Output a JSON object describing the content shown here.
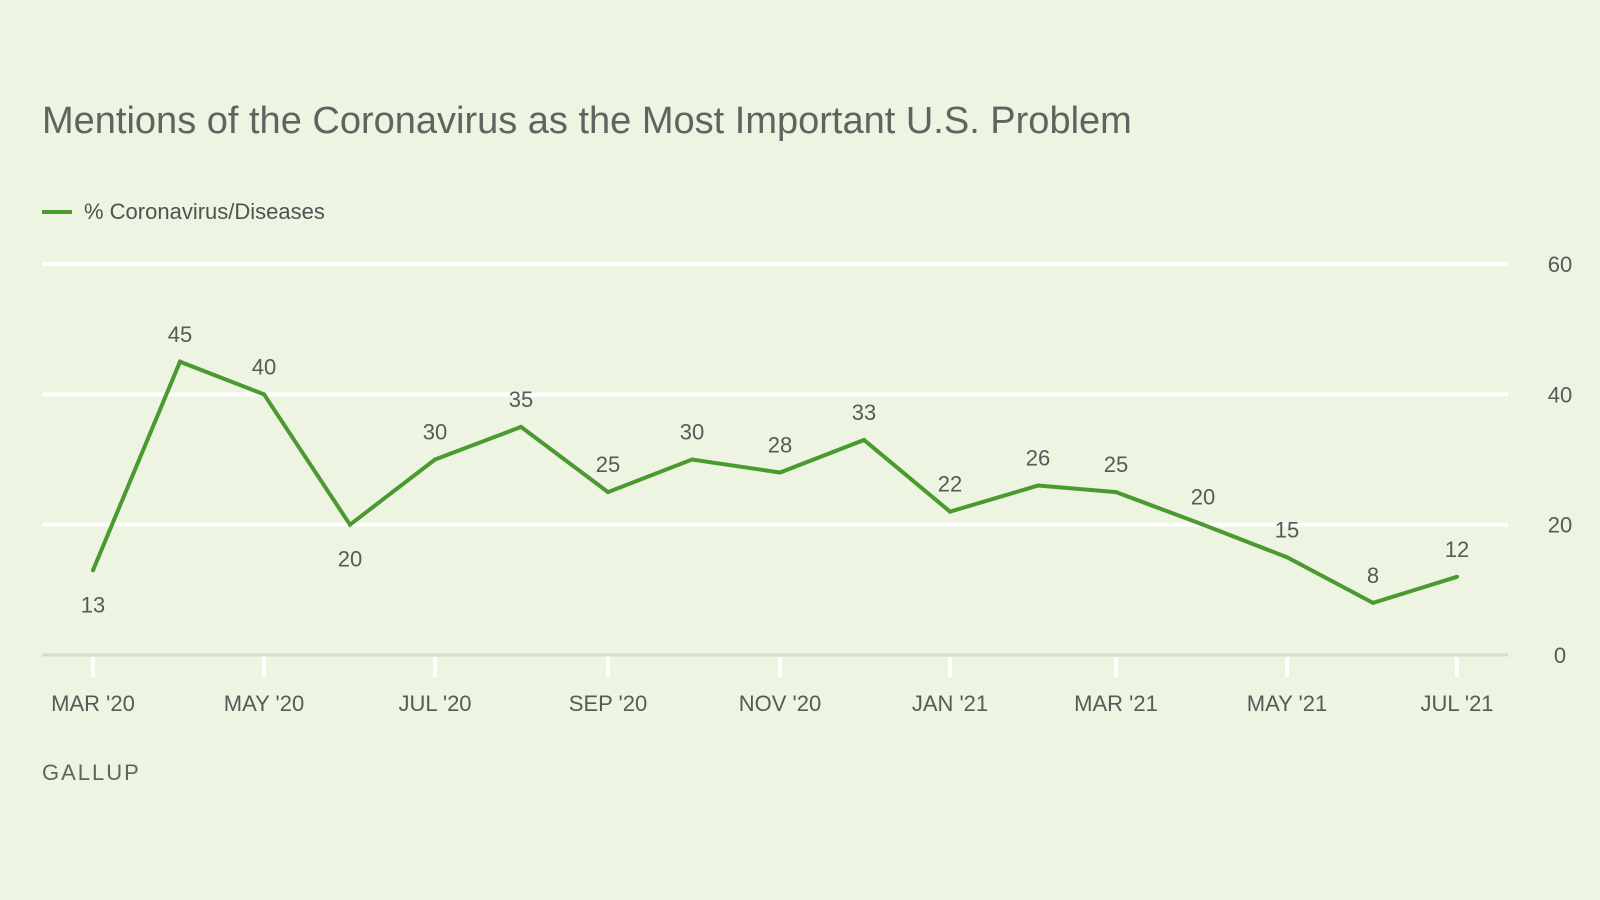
{
  "chart_data": {
    "type": "line",
    "title": "Mentions of the Coronavirus as the Most Important U.S. Problem",
    "legend": {
      "position": "top-left",
      "entries": [
        "% Coronavirus/Diseases"
      ]
    },
    "source": "GALLUP",
    "x": [
      "Mar '20",
      "Apr '20",
      "May '20",
      "Jun '20",
      "Jul '20",
      "Aug '20",
      "Sep '20",
      "Oct '20",
      "Nov '20",
      "Dec '20",
      "Jan '21",
      "Feb '21",
      "Mar '21",
      "Apr '21",
      "May '21",
      "Jun '21",
      "Jul '21"
    ],
    "x_tick_labels": [
      "MAR '20",
      "MAY '20",
      "JUL '20",
      "SEP '20",
      "NOV '20",
      "JAN '21",
      "MAR '21",
      "MAY '21",
      "JUL '21"
    ],
    "series": [
      {
        "name": "% Coronavirus/Diseases",
        "color": "#4a9a2f",
        "values": [
          13,
          45,
          40,
          20,
          30,
          35,
          25,
          30,
          28,
          33,
          22,
          26,
          25,
          20,
          15,
          8,
          12
        ]
      }
    ],
    "ylim": [
      0,
      60
    ],
    "y_ticks": [
      0,
      20,
      40,
      60
    ],
    "y_axis_side": "right",
    "grid": true,
    "xlabel": "",
    "ylabel": ""
  }
}
